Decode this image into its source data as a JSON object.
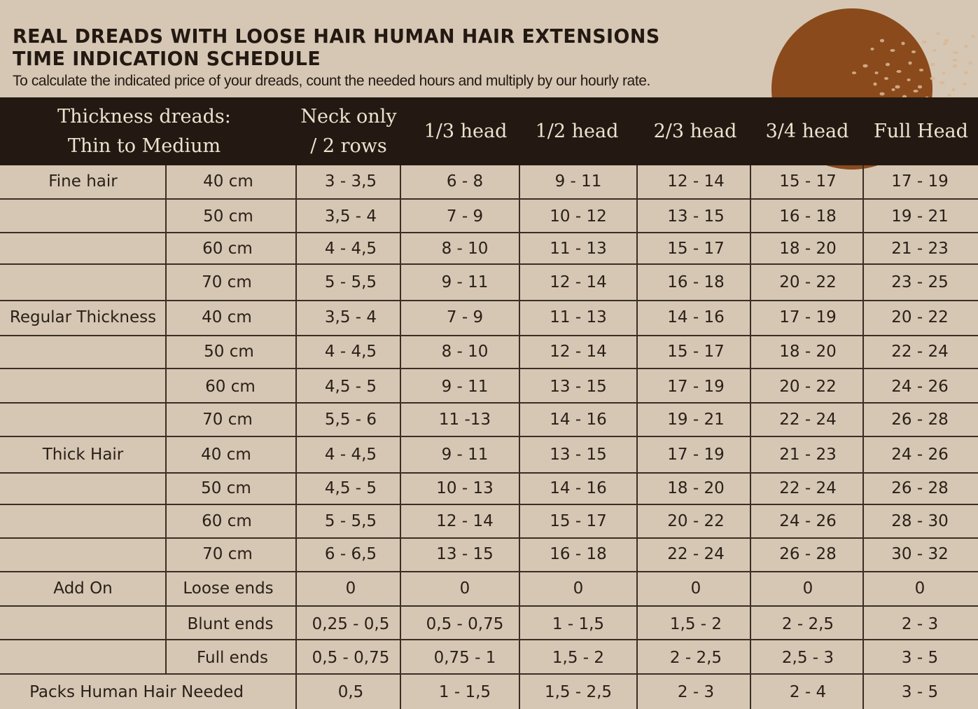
{
  "title_lines": [
    "REAL DREADS WITH LOOSE HAIR HUMAN HAIR EXTENSIONS",
    "TIME INDICATION SCHEDULE"
  ],
  "subtitle": "To calculate the indicated price of your dreads, count the needed hours and multiply by our hourly rate.",
  "colors": {
    "background": "#d6c7b4",
    "header_band": "#231912",
    "header_text": "#eee2cf",
    "accent_circle": "#8a4a1c",
    "dots": "#d9b793"
  },
  "header": {
    "thickness": [
      "Thickness dreads:",
      "Thin to Medium"
    ],
    "columns": [
      [
        "Neck only",
        "/ 2 rows"
      ],
      [
        "1/3 head"
      ],
      [
        "1/2 head"
      ],
      [
        "2/3 head"
      ],
      [
        "3/4 head"
      ],
      [
        "Full Head"
      ]
    ]
  },
  "rows": [
    {
      "group": "Fine hair",
      "label": "40 cm",
      "values": [
        "3 - 3,5",
        "6 - 8",
        "9 - 11",
        "12 - 14",
        "15 - 17",
        "17 - 19"
      ]
    },
    {
      "group": "",
      "label": "50 cm",
      "values": [
        "3,5 - 4",
        "7 - 9",
        "10 - 12",
        "13 - 15",
        "16 - 18",
        "19 - 21"
      ]
    },
    {
      "group": "",
      "label": "60 cm",
      "values": [
        "4 - 4,5",
        "8 - 10",
        "11 - 13",
        "15 - 17",
        "18 - 20",
        "21 - 23"
      ]
    },
    {
      "group": "",
      "label": "70 cm",
      "values": [
        "5 - 5,5",
        "9 - 11",
        "12 - 14",
        "16 - 18",
        "20 - 22",
        "23 - 25"
      ]
    },
    {
      "group": "Regular Thickness",
      "label": "40 cm",
      "values": [
        "3,5 - 4",
        "7 - 9",
        "11 - 13",
        "14 - 16",
        "17 - 19",
        "20 - 22"
      ]
    },
    {
      "group": "",
      "label": "50 cm",
      "values": [
        "4 - 4,5",
        "8 - 10",
        "12 - 14",
        "15 - 17",
        "18 - 20",
        "22 - 24"
      ]
    },
    {
      "group": "",
      "label": "60 cm",
      "values": [
        "4,5 - 5",
        "9 - 11",
        "13 - 15",
        "17 - 19",
        "20 - 22",
        "24 - 26"
      ]
    },
    {
      "group": "",
      "label": "70 cm",
      "values": [
        "5,5 - 6",
        "11 -13",
        "14 - 16",
        "19 - 21",
        "22 - 24",
        "26 - 28"
      ]
    },
    {
      "group": "Thick Hair",
      "label": "40 cm",
      "values": [
        "4 - 4,5",
        "9 - 11",
        "13 - 15",
        "17 - 19",
        "21 - 23",
        "24 - 26"
      ]
    },
    {
      "group": "",
      "label": "50 cm",
      "values": [
        "4,5 - 5",
        "10 - 13",
        "14 - 16",
        "18 - 20",
        "22 - 24",
        "26 - 28"
      ]
    },
    {
      "group": "",
      "label": "60 cm",
      "values": [
        "5 - 5,5",
        "12 - 14",
        "15 - 17",
        "20 - 22",
        "24 - 26",
        "28 - 30"
      ]
    },
    {
      "group": "",
      "label": "70 cm",
      "values": [
        "6 - 6,5",
        "13 - 15",
        "16 - 18",
        "22 - 24",
        "26 - 28",
        "30 - 32"
      ]
    },
    {
      "group": "Add On",
      "label": "Loose ends",
      "values": [
        "0",
        "0",
        "0",
        "0",
        "0",
        "0"
      ]
    },
    {
      "group": "",
      "label": "Blunt ends",
      "values": [
        "0,25 - 0,5",
        "0,5 - 0,75",
        "1 - 1,5",
        "1,5 - 2",
        "2 - 2,5",
        "2 - 3"
      ]
    },
    {
      "group": "",
      "label": "Full ends",
      "values": [
        "0,5 - 0,75",
        "0,75 - 1",
        "1,5 - 2",
        "2 - 2,5",
        "2,5 - 3",
        "3 - 5"
      ]
    },
    {
      "group": "Packs  Human Hair Needed",
      "label": "",
      "values": [
        "0,5",
        "1 - 1,5",
        "1,5 - 2,5",
        "2 - 3",
        "2 - 4",
        "3 - 5"
      ]
    }
  ]
}
